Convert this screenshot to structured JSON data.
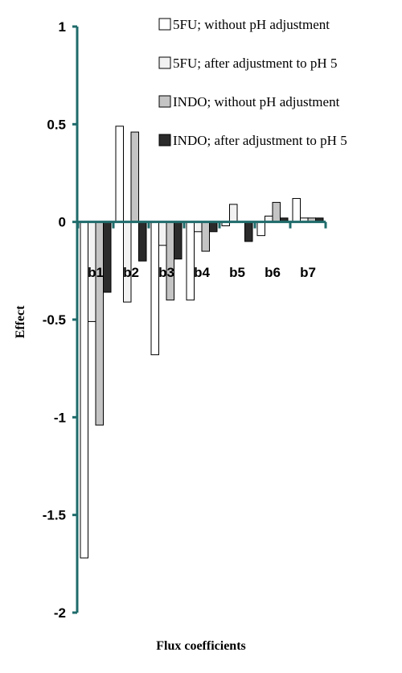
{
  "chart_data": {
    "type": "bar",
    "title": "",
    "xlabel": "Flux coefficients",
    "ylabel": "Effect",
    "ylim": [
      -2,
      1
    ],
    "yticks": [
      1,
      0.5,
      0,
      -0.5,
      -1,
      -1.5,
      -2
    ],
    "ytick_labels": [
      "1",
      "0.5",
      "0",
      "-0.5",
      "-1",
      "-1.5",
      "-2"
    ],
    "categories": [
      "b1",
      "b2",
      "b3",
      "b4",
      "b5",
      "b6",
      "b7"
    ],
    "grid": false,
    "legend_position": "top-right",
    "axis_color": "#1f6b6b",
    "series": [
      {
        "name": "5FU; without pH adjustment",
        "color": "#ffffff",
        "values": [
          -1.72,
          0.49,
          -0.68,
          -0.4,
          -0.02,
          -0.07,
          0.12
        ]
      },
      {
        "name": "5FU; after adjustment to pH 5",
        "color": "#f2f2f2",
        "values": [
          -0.51,
          -0.41,
          -0.12,
          -0.05,
          0.09,
          0.03,
          0.02
        ]
      },
      {
        "name": "INDO; without pH adjustment",
        "color": "#c4c4c4",
        "values": [
          -1.04,
          0.46,
          -0.4,
          -0.15,
          0.0,
          0.1,
          0.02
        ]
      },
      {
        "name": "INDO; after adjustment to pH 5",
        "color": "#2b2b2b",
        "values": [
          -0.36,
          -0.2,
          -0.19,
          -0.05,
          -0.1,
          0.02,
          0.02
        ]
      }
    ]
  }
}
